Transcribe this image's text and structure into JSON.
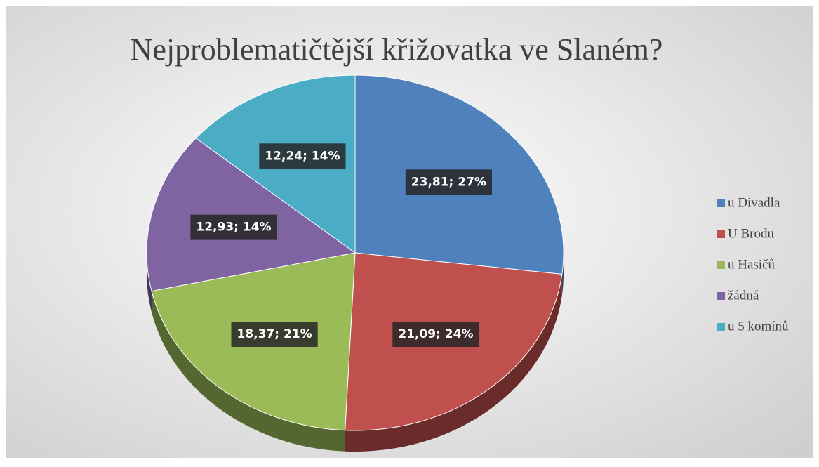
{
  "chart_data": {
    "type": "pie",
    "title": "Nejproblematičtější křižovatka ve Slaném?",
    "categories": [
      "u Divadla",
      "U Brodu",
      "u Hasičů",
      "žádná",
      "u 5 komínů"
    ],
    "values": [
      23.81,
      21.09,
      18.37,
      12.93,
      12.24
    ],
    "value_labels": [
      "23,81; 27%",
      "21,09; 24%",
      "18,37; 21%",
      "12,93; 14%",
      "12,24; 14%"
    ],
    "colors": [
      "#4f81bd",
      "#c0504d",
      "#9bbb59",
      "#8064a2",
      "#4bacc6"
    ],
    "legend": "right"
  }
}
